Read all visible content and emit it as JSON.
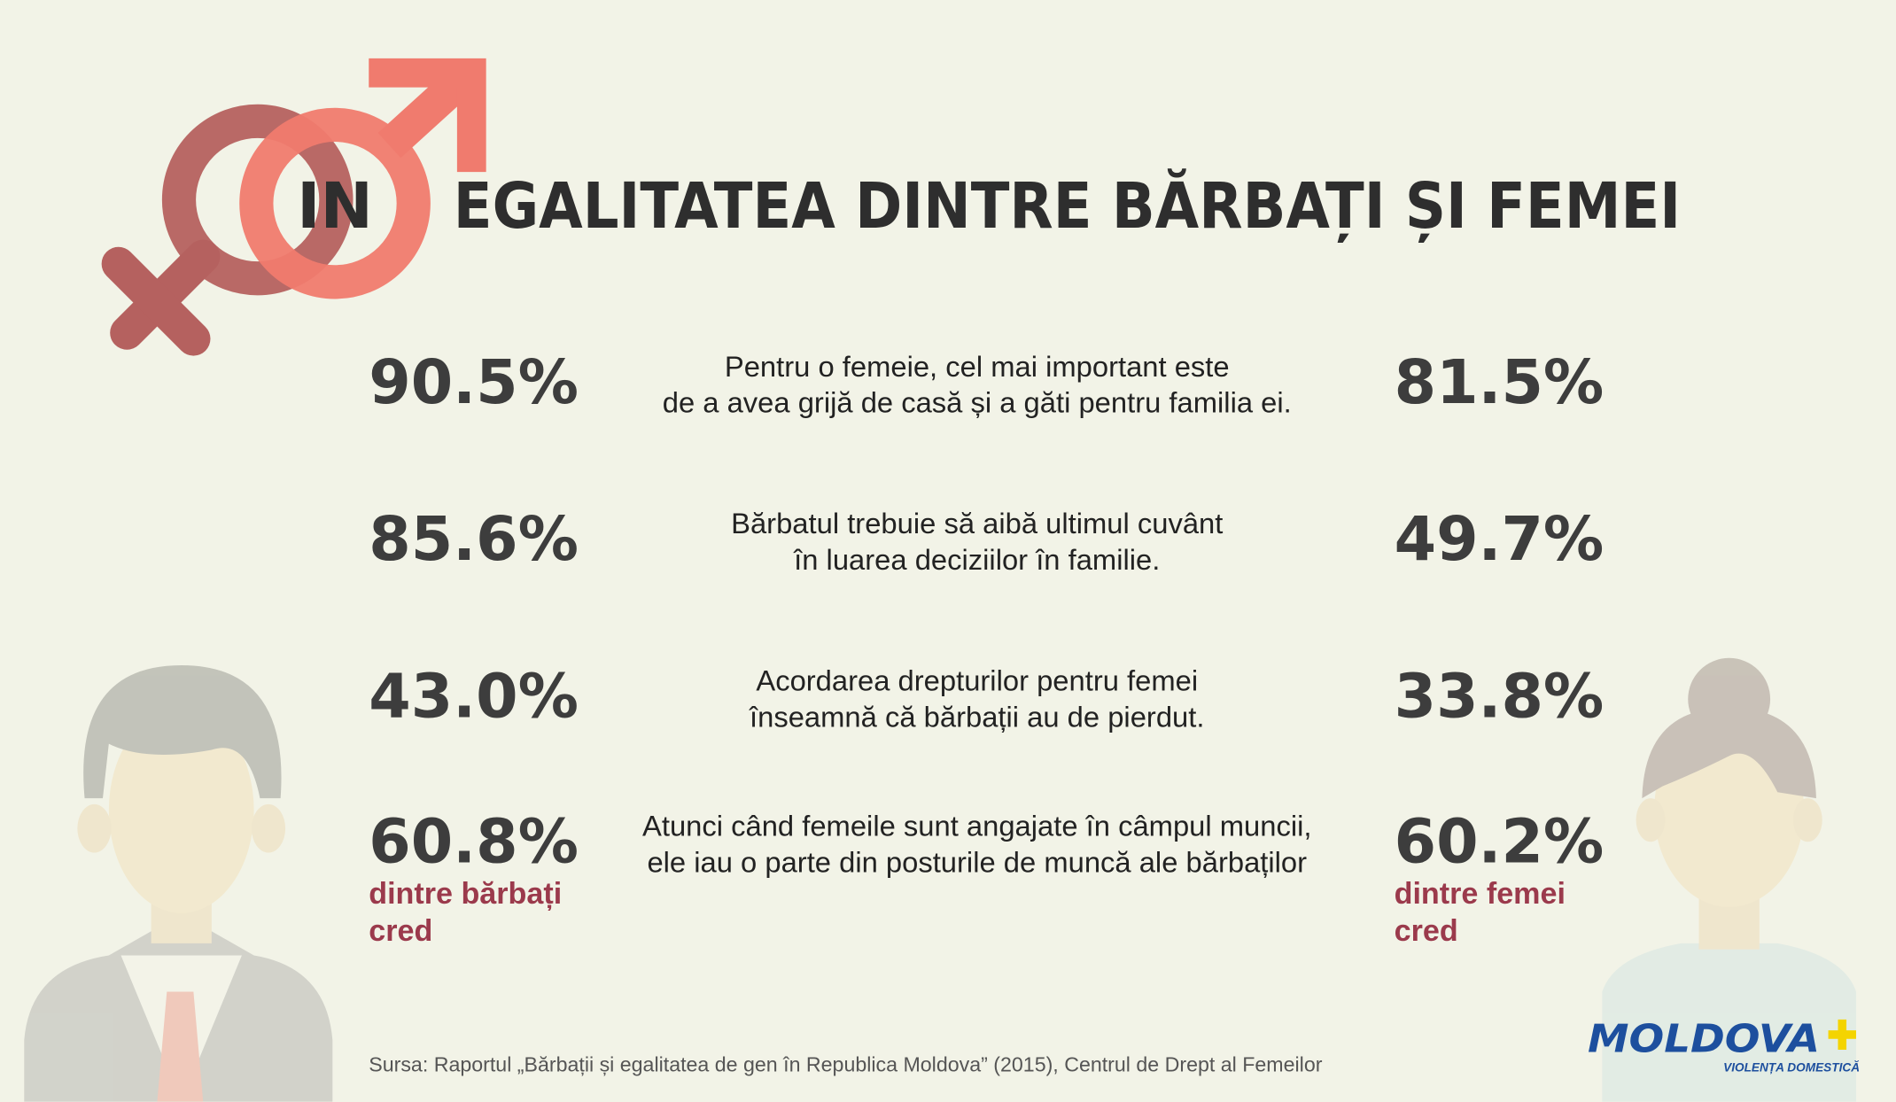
{
  "header": {
    "prefix": "IN",
    "title": "EGALITATEA DINTRE BĂRBAȚI ȘI FEMEI"
  },
  "rows": [
    {
      "men": "90.5%",
      "statement": [
        "Pentru o femeie, cel mai important este",
        "de a avea grijă de casă și a găti pentru familia ei."
      ],
      "women": "81.5%"
    },
    {
      "men": "85.6%",
      "statement": [
        "Bărbatul trebuie să aibă ultimul cuvânt",
        "în luarea deciziilor în familie."
      ],
      "women": "49.7%"
    },
    {
      "men": "43.0%",
      "statement": [
        "Acordarea drepturilor pentru femei",
        "înseamnă că bărbații au de pierdut."
      ],
      "women": "33.8%"
    },
    {
      "men": "60.8%",
      "statement": [
        "Atunci când femeile sunt angajate în câmpul muncii,",
        "ele iau o parte din posturile de muncă ale bărbaților"
      ],
      "women": "60.2%"
    }
  ],
  "men_caption": [
    "dintre bărbați",
    "cred"
  ],
  "women_caption": [
    "dintre femei",
    "cred"
  ],
  "source": "Sursa: Raportul „Bărbații și egalitatea de gen în Republica Moldova” (2015), Centrul de Drept al Femeilor",
  "logo": {
    "name": "MOLDOVA",
    "tagline": "VIOLENȚA DOMESTICĂ"
  }
}
